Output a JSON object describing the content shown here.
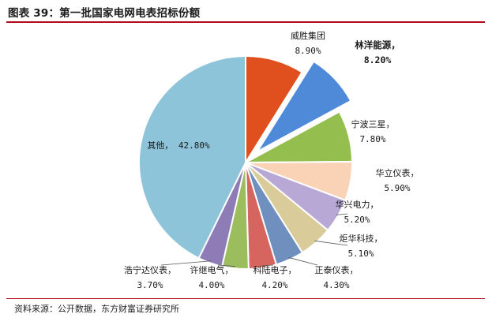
{
  "header": {
    "caption": "图表 39：第一批国家电网电表招标份额"
  },
  "footer": {
    "source": "资料来源：公开数据，东方财富证券研究所"
  },
  "chart_data": {
    "type": "pie",
    "title": "图表 39：第一批国家电网电表招标份额",
    "slices": [
      {
        "name": "威胜集团",
        "value": 8.9,
        "label": "8.90%",
        "color": "#e0501e",
        "exploded": false,
        "emphasis": false
      },
      {
        "name": "林洋能源，",
        "value": 8.2,
        "label": "8.20%",
        "color": "#4f8ad8",
        "exploded": true,
        "emphasis": true
      },
      {
        "name": "宁波三星，",
        "value": 7.8,
        "label": "7.80%",
        "color": "#94bf4e",
        "exploded": false,
        "emphasis": false
      },
      {
        "name": "华立仪表，",
        "value": 5.9,
        "label": "5.90%",
        "color": "#fad3b6",
        "exploded": false,
        "emphasis": false
      },
      {
        "name": "华兴电力，",
        "value": 5.2,
        "label": "5.20%",
        "color": "#b7a8d6",
        "exploded": false,
        "emphasis": false
      },
      {
        "name": "炬华科技，",
        "value": 5.1,
        "label": "5.10%",
        "color": "#d9cc9a",
        "exploded": false,
        "emphasis": false
      },
      {
        "name": "正泰仪表，",
        "value": 4.3,
        "label": "4.30%",
        "color": "#6f8fbf",
        "exploded": false,
        "emphasis": false
      },
      {
        "name": "科陆电子，",
        "value": 4.2,
        "label": "4.20%",
        "color": "#d66560",
        "exploded": false,
        "emphasis": false
      },
      {
        "name": "许继电气，",
        "value": 4.0,
        "label": "4.00%",
        "color": "#9cbd5e",
        "exploded": false,
        "emphasis": false
      },
      {
        "name": "浩宁达仪表，",
        "value": 3.7,
        "label": "3.70%",
        "color": "#8d7cb5",
        "exploded": false,
        "emphasis": false
      },
      {
        "name": "其他，",
        "value": 42.8,
        "label": "42.80%",
        "color": "#8dc4d9",
        "exploded": false,
        "emphasis": false
      }
    ],
    "start_angle_deg": 0,
    "direction": "clockwise",
    "legend": "none"
  }
}
